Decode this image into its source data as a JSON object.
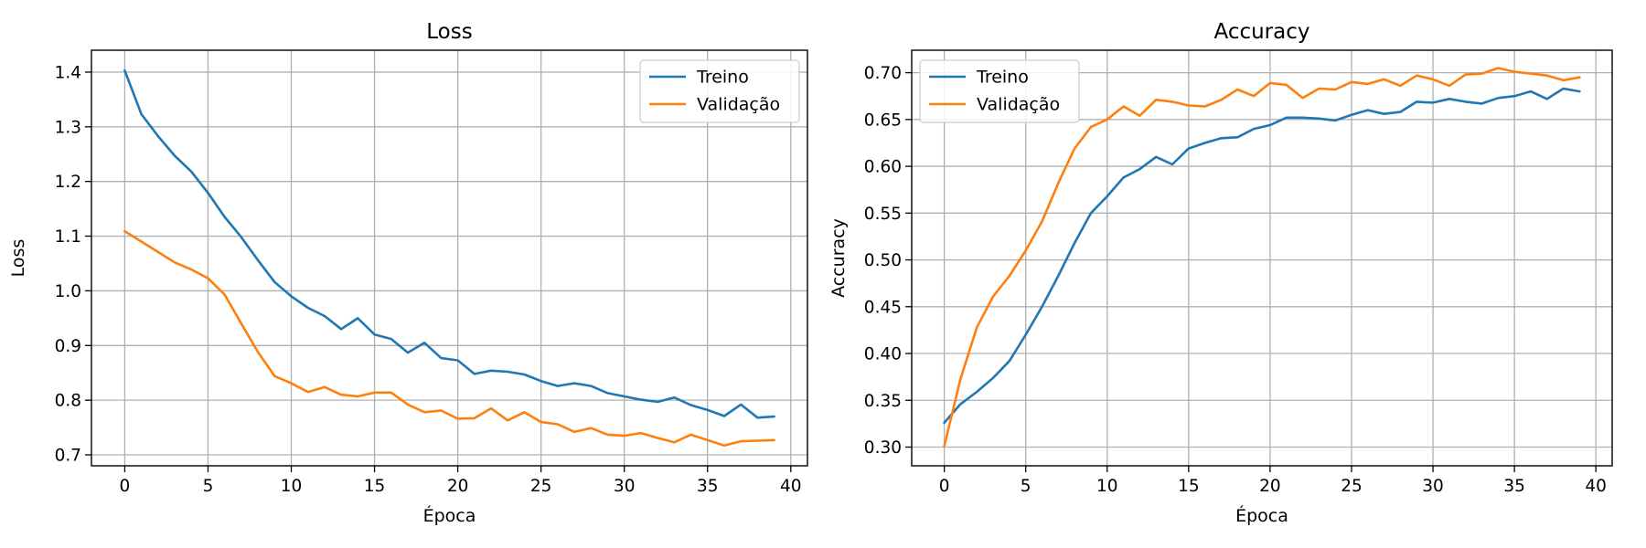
{
  "colors": {
    "treino": "#1f77b4",
    "validacao": "#ff7f0e",
    "grid": "#b0b0b0"
  },
  "chart_data": [
    {
      "type": "line",
      "title": "Loss",
      "xlabel": "Época",
      "ylabel": "Loss",
      "xlim": [
        -2,
        41
      ],
      "ylim": [
        0.68,
        1.44
      ],
      "xticks": [
        0,
        5,
        10,
        15,
        20,
        25,
        30,
        35,
        40
      ],
      "yticks": [
        0.7,
        0.8,
        0.9,
        1.0,
        1.1,
        1.2,
        1.3,
        1.4
      ],
      "tick_decimals": 1,
      "grid": true,
      "legend_position": "top-right",
      "x": [
        0,
        1,
        2,
        3,
        4,
        5,
        6,
        7,
        8,
        9,
        10,
        11,
        12,
        13,
        14,
        15,
        16,
        17,
        18,
        19,
        20,
        21,
        22,
        23,
        24,
        25,
        26,
        27,
        28,
        29,
        30,
        31,
        32,
        33,
        34,
        35,
        36,
        37,
        38,
        39
      ],
      "series": [
        {
          "name": "Treino",
          "color": "#1f77b4",
          "values": [
            1.403,
            1.323,
            1.283,
            1.247,
            1.218,
            1.179,
            1.135,
            1.098,
            1.056,
            1.016,
            0.99,
            0.969,
            0.954,
            0.93,
            0.95,
            0.92,
            0.912,
            0.887,
            0.905,
            0.877,
            0.873,
            0.848,
            0.854,
            0.852,
            0.847,
            0.835,
            0.826,
            0.831,
            0.826,
            0.813,
            0.807,
            0.801,
            0.797,
            0.805,
            0.791,
            0.782,
            0.771,
            0.792,
            0.768,
            0.77
          ]
        },
        {
          "name": "Validação",
          "color": "#ff7f0e",
          "values": [
            1.109,
            1.09,
            1.071,
            1.052,
            1.039,
            1.023,
            0.993,
            0.94,
            0.888,
            0.844,
            0.831,
            0.815,
            0.824,
            0.81,
            0.807,
            0.814,
            0.814,
            0.792,
            0.778,
            0.781,
            0.766,
            0.767,
            0.785,
            0.763,
            0.778,
            0.76,
            0.756,
            0.742,
            0.749,
            0.737,
            0.735,
            0.74,
            0.731,
            0.723,
            0.737,
            0.727,
            0.717,
            0.725,
            0.726,
            0.727
          ]
        }
      ]
    },
    {
      "type": "line",
      "title": "Accuracy",
      "xlabel": "Época",
      "ylabel": "Accuracy",
      "xlim": [
        -2,
        41
      ],
      "ylim": [
        0.28,
        0.724
      ],
      "xticks": [
        0,
        5,
        10,
        15,
        20,
        25,
        30,
        35,
        40
      ],
      "yticks": [
        0.3,
        0.35,
        0.4,
        0.45,
        0.5,
        0.55,
        0.6,
        0.65,
        0.7
      ],
      "tick_decimals": 2,
      "grid": true,
      "legend_position": "top-left",
      "x": [
        0,
        1,
        2,
        3,
        4,
        5,
        6,
        7,
        8,
        9,
        10,
        11,
        12,
        13,
        14,
        15,
        16,
        17,
        18,
        19,
        20,
        21,
        22,
        23,
        24,
        25,
        26,
        27,
        28,
        29,
        30,
        31,
        32,
        33,
        34,
        35,
        36,
        37,
        38,
        39
      ],
      "series": [
        {
          "name": "Treino",
          "color": "#1f77b4",
          "values": [
            0.326,
            0.346,
            0.359,
            0.374,
            0.392,
            0.42,
            0.45,
            0.483,
            0.518,
            0.55,
            0.568,
            0.588,
            0.597,
            0.61,
            0.602,
            0.619,
            0.625,
            0.63,
            0.631,
            0.64,
            0.644,
            0.652,
            0.652,
            0.651,
            0.649,
            0.655,
            0.66,
            0.656,
            0.658,
            0.669,
            0.668,
            0.672,
            0.669,
            0.667,
            0.673,
            0.675,
            0.68,
            0.672,
            0.683,
            0.68
          ]
        },
        {
          "name": "Validação",
          "color": "#ff7f0e",
          "values": [
            0.301,
            0.373,
            0.428,
            0.461,
            0.483,
            0.51,
            0.541,
            0.582,
            0.619,
            0.642,
            0.65,
            0.664,
            0.654,
            0.671,
            0.669,
            0.665,
            0.664,
            0.671,
            0.682,
            0.675,
            0.689,
            0.687,
            0.673,
            0.683,
            0.682,
            0.69,
            0.688,
            0.693,
            0.686,
            0.697,
            0.693,
            0.686,
            0.698,
            0.699,
            0.705,
            0.701,
            0.699,
            0.697,
            0.692,
            0.695
          ]
        }
      ]
    }
  ]
}
